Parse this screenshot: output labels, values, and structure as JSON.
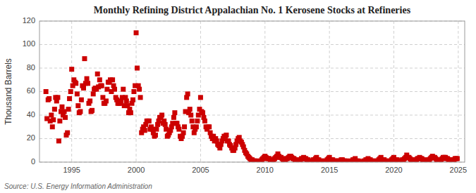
{
  "chart_data": {
    "type": "scatter",
    "title": "Monthly Refining District Appalachian No. 1 Kerosene Stocks at Refineries",
    "ylabel": "Thousand Barrels",
    "annotations": [
      "Source: U.S. Energy Information Administration"
    ],
    "color": "#cc0000",
    "marker": "square",
    "grid": true,
    "xlim": [
      1992.5,
      2025.5
    ],
    "ylim": [
      0,
      120
    ],
    "xticks": [
      1995,
      2000,
      2005,
      2010,
      2015,
      2020,
      2025
    ],
    "yticks": [
      0,
      20,
      40,
      60,
      80,
      100,
      120
    ],
    "x": [
      1993.0,
      1993.08,
      1993.17,
      1993.25,
      1993.33,
      1993.42,
      1993.5,
      1993.58,
      1993.67,
      1993.75,
      1993.83,
      1993.92,
      1994.0,
      1994.08,
      1994.17,
      1994.25,
      1994.33,
      1994.42,
      1994.5,
      1994.58,
      1994.67,
      1994.75,
      1994.83,
      1994.92,
      1995.0,
      1995.08,
      1995.17,
      1995.25,
      1995.33,
      1995.42,
      1995.5,
      1995.58,
      1995.67,
      1995.75,
      1995.83,
      1995.92,
      1996.0,
      1996.08,
      1996.17,
      1996.25,
      1996.33,
      1996.42,
      1996.5,
      1996.58,
      1996.67,
      1996.75,
      1996.83,
      1996.92,
      1997.0,
      1997.08,
      1997.17,
      1997.25,
      1997.33,
      1997.42,
      1997.5,
      1997.58,
      1997.67,
      1997.75,
      1997.83,
      1997.92,
      1998.0,
      1998.08,
      1998.17,
      1998.25,
      1998.33,
      1998.42,
      1998.5,
      1998.58,
      1998.67,
      1998.75,
      1998.83,
      1998.92,
      1999.0,
      1999.08,
      1999.17,
      1999.25,
      1999.33,
      1999.42,
      1999.5,
      1999.58,
      1999.67,
      1999.75,
      1999.83,
      1999.92,
      2000.0,
      2000.08,
      2000.17,
      2000.25,
      2000.33,
      2000.42,
      2000.5,
      2000.58,
      2000.67,
      2000.75,
      2000.83,
      2000.92,
      2001.0,
      2001.08,
      2001.17,
      2001.25,
      2001.33,
      2001.42,
      2001.5,
      2001.58,
      2001.67,
      2001.75,
      2001.83,
      2001.92,
      2002.0,
      2002.08,
      2002.17,
      2002.25,
      2002.33,
      2002.42,
      2002.5,
      2002.58,
      2002.67,
      2002.75,
      2002.83,
      2002.92,
      2003.0,
      2003.08,
      2003.17,
      2003.25,
      2003.33,
      2003.42,
      2003.5,
      2003.58,
      2003.67,
      2003.75,
      2003.83,
      2003.92,
      2004.0,
      2004.08,
      2004.17,
      2004.25,
      2004.33,
      2004.42,
      2004.5,
      2004.58,
      2004.67,
      2004.75,
      2004.83,
      2004.92,
      2005.0,
      2005.08,
      2005.17,
      2005.25,
      2005.33,
      2005.42,
      2005.5,
      2005.58,
      2005.67,
      2005.75,
      2005.83,
      2005.92,
      2006.0,
      2006.08,
      2006.17,
      2006.25,
      2006.33,
      2006.42,
      2006.5,
      2006.58,
      2006.67,
      2006.75,
      2006.83,
      2006.92,
      2007.0,
      2007.08,
      2007.17,
      2007.25,
      2007.33,
      2007.42,
      2007.5,
      2007.58,
      2007.67,
      2007.75,
      2007.83,
      2007.92,
      2008.0,
      2008.08,
      2008.17,
      2008.25,
      2008.33,
      2008.42,
      2008.5,
      2008.58,
      2008.67,
      2008.75,
      2008.83,
      2008.92,
      2009.0,
      2009.08,
      2009.17,
      2009.25,
      2009.33,
      2009.42,
      2009.5,
      2009.58,
      2009.67,
      2009.75,
      2009.83,
      2009.92,
      2010.0,
      2010.08,
      2010.17,
      2010.25,
      2010.33,
      2010.42,
      2010.5,
      2010.58,
      2010.67,
      2010.75,
      2010.83,
      2010.92,
      2011.0,
      2011.08,
      2011.17,
      2011.25,
      2011.33,
      2011.42,
      2011.5,
      2011.58,
      2011.67,
      2011.75,
      2011.83,
      2011.92,
      2012.0,
      2012.08,
      2012.17,
      2012.25,
      2012.33,
      2012.42,
      2012.5,
      2012.58,
      2012.67,
      2012.75,
      2012.83,
      2012.92,
      2013.0,
      2013.08,
      2013.17,
      2013.25,
      2013.33,
      2013.42,
      2013.5,
      2013.58,
      2013.67,
      2013.75,
      2013.83,
      2013.92,
      2014.0,
      2014.08,
      2014.17,
      2014.25,
      2014.33,
      2014.42,
      2014.5,
      2014.58,
      2014.67,
      2014.75,
      2014.83,
      2014.92,
      2015.0,
      2015.08,
      2015.17,
      2015.25,
      2015.33,
      2015.42,
      2015.5,
      2015.58,
      2015.67,
      2015.75,
      2015.83,
      2015.92,
      2016.0,
      2016.08,
      2016.17,
      2016.25,
      2016.33,
      2016.42,
      2016.5,
      2016.58,
      2016.67,
      2016.75,
      2016.83,
      2016.92,
      2017.0,
      2017.08,
      2017.17,
      2017.25,
      2017.33,
      2017.42,
      2017.5,
      2017.58,
      2017.67,
      2017.75,
      2017.83,
      2017.92,
      2018.0,
      2018.08,
      2018.17,
      2018.25,
      2018.33,
      2018.42,
      2018.5,
      2018.58,
      2018.67,
      2018.75,
      2018.83,
      2018.92,
      2019.0,
      2019.08,
      2019.17,
      2019.25,
      2019.33,
      2019.42,
      2019.5,
      2019.58,
      2019.67,
      2019.75,
      2019.83,
      2019.92,
      2020.0,
      2020.08,
      2020.17,
      2020.25,
      2020.33,
      2020.42,
      2020.5,
      2020.58,
      2020.67,
      2020.75,
      2020.83,
      2020.92,
      2021.0,
      2021.08,
      2021.17,
      2021.25,
      2021.33,
      2021.42,
      2021.5,
      2021.58,
      2021.67,
      2021.75,
      2021.83,
      2021.92,
      2022.0,
      2022.08,
      2022.17,
      2022.25,
      2022.33,
      2022.42,
      2022.5,
      2022.58,
      2022.67,
      2022.75,
      2022.83,
      2022.92,
      2023.0,
      2023.08,
      2023.17,
      2023.25,
      2023.33,
      2023.42,
      2023.5,
      2023.58,
      2023.67,
      2023.75,
      2023.83,
      2023.92,
      2024.0,
      2024.08,
      2024.17,
      2024.25,
      2024.33,
      2024.42,
      2024.5,
      2024.58,
      2024.67,
      2024.75,
      2024.83,
      2024.92
    ],
    "values": [
      60,
      37,
      53,
      54,
      35,
      40,
      30,
      36,
      45,
      55,
      52,
      55,
      18,
      35,
      43,
      47,
      40,
      43,
      38,
      23,
      25,
      45,
      54,
      60,
      79,
      65,
      70,
      68,
      67,
      58,
      48,
      42,
      43,
      53,
      65,
      63,
      88,
      67,
      71,
      67,
      50,
      52,
      43,
      44,
      58,
      62,
      63,
      62,
      75,
      64,
      70,
      65,
      65,
      55,
      50,
      50,
      52,
      62,
      68,
      68,
      70,
      60,
      70,
      65,
      62,
      55,
      53,
      50,
      50,
      50,
      52,
      55,
      62,
      48,
      55,
      52,
      48,
      42,
      45,
      42,
      50,
      53,
      60,
      65,
      110,
      80,
      65,
      62,
      55,
      25,
      28,
      30,
      27,
      32,
      35,
      35,
      35,
      28,
      30,
      28,
      25,
      22,
      23,
      28,
      32,
      35,
      38,
      38,
      40,
      33,
      35,
      32,
      28,
      22,
      23,
      25,
      27,
      30,
      33,
      38,
      42,
      33,
      33,
      30,
      28,
      22,
      20,
      22,
      25,
      30,
      43,
      55,
      58,
      42,
      45,
      40,
      35,
      30,
      25,
      28,
      30,
      35,
      40,
      45,
      55,
      43,
      42,
      38,
      35,
      30,
      28,
      30,
      30,
      25,
      22,
      20,
      22,
      18,
      20,
      18,
      15,
      14,
      12,
      15,
      18,
      20,
      22,
      22,
      23,
      18,
      18,
      15,
      14,
      12,
      10,
      10,
      12,
      15,
      18,
      20,
      21,
      18,
      17,
      15,
      13,
      10,
      8,
      7,
      5,
      4,
      3,
      2,
      2,
      1,
      1,
      1,
      1,
      0,
      0,
      0,
      1,
      2,
      3,
      4,
      5,
      4,
      3,
      3,
      3,
      2,
      2,
      2,
      2,
      3,
      4,
      5,
      7,
      5,
      4,
      4,
      3,
      2,
      2,
      2,
      3,
      3,
      4,
      5,
      5,
      4,
      3,
      3,
      2,
      2,
      1,
      1,
      1,
      2,
      3,
      3,
      4,
      3,
      3,
      2,
      2,
      1,
      1,
      1,
      1,
      2,
      2,
      3,
      4,
      2,
      2,
      1,
      1,
      1,
      0,
      0,
      1,
      1,
      2,
      3,
      4,
      2,
      2,
      2,
      1,
      1,
      1,
      1,
      1,
      1,
      1,
      2,
      2,
      1,
      1,
      1,
      1,
      0,
      0,
      0,
      1,
      1,
      2,
      2,
      3,
      1,
      1,
      1,
      0,
      0,
      0,
      0,
      1,
      1,
      2,
      2,
      3,
      2,
      2,
      1,
      1,
      1,
      0,
      0,
      1,
      1,
      2,
      3,
      4,
      2,
      2,
      2,
      1,
      1,
      0,
      0,
      1,
      1,
      2,
      3,
      4,
      2,
      2,
      2,
      1,
      1,
      1,
      1,
      2,
      2,
      3,
      4,
      6,
      4,
      4,
      3,
      2,
      2,
      1,
      1,
      2,
      2,
      3,
      3,
      4,
      3,
      3,
      2,
      2,
      1,
      1,
      1,
      2,
      2,
      3,
      4,
      5,
      4,
      4,
      3,
      2,
      2,
      1,
      1,
      2,
      3,
      4,
      4,
      4,
      3,
      3,
      2,
      2,
      2,
      2,
      2,
      2,
      3,
      3,
      3
    ]
  }
}
